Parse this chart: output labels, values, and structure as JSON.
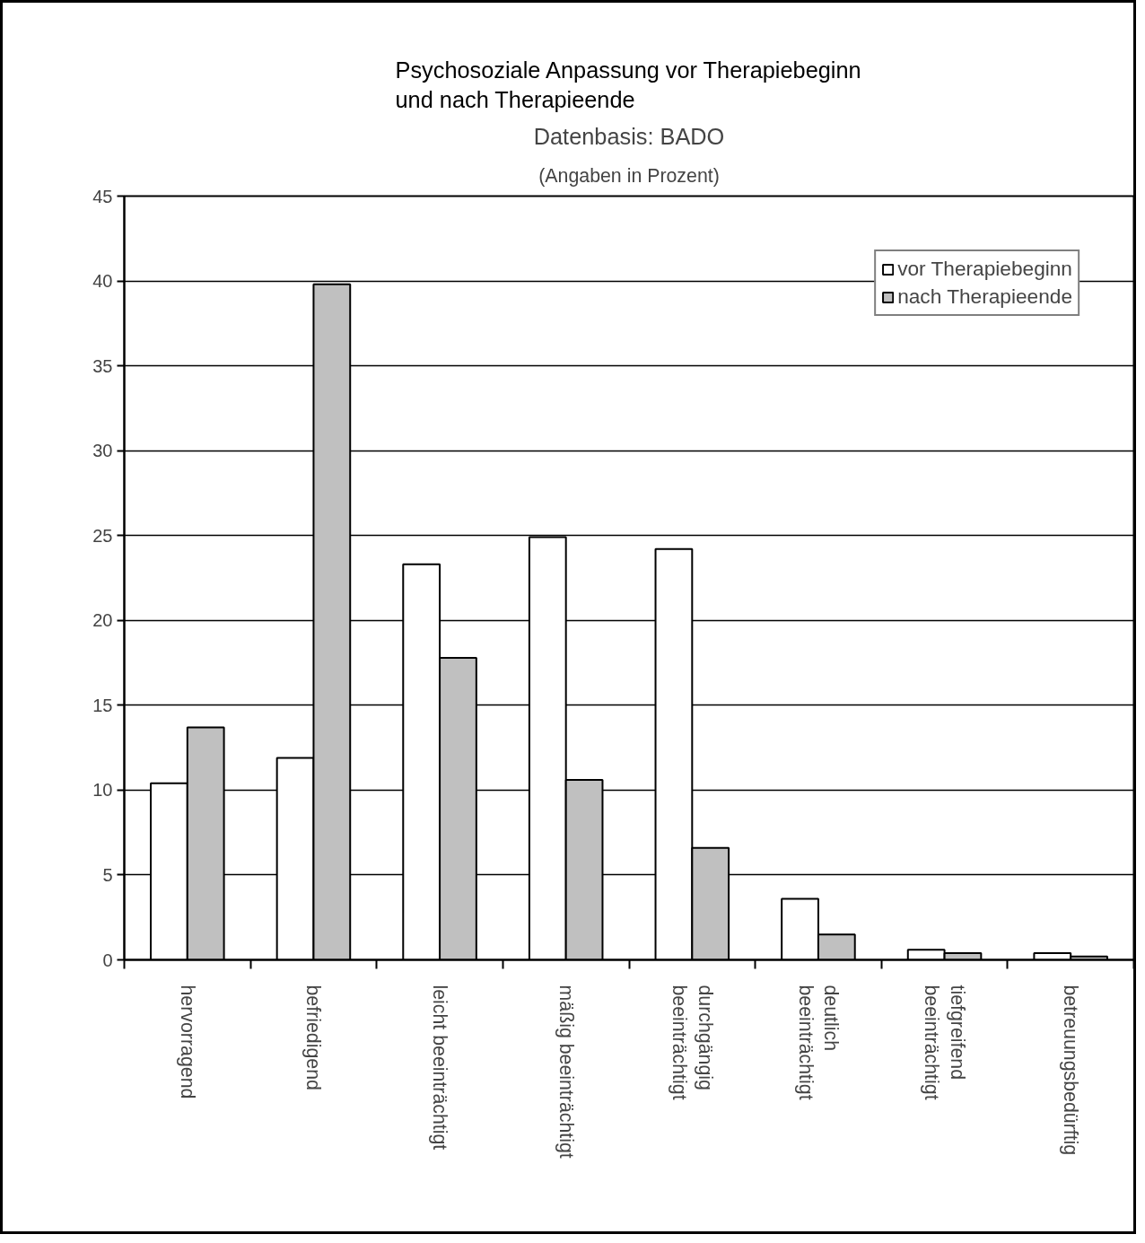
{
  "chart_data": {
    "type": "bar",
    "title": "Psychosoziale Anpassung vor Therapiebeginn und nach Therapieende",
    "subtitle": "Datenbasis: BADO",
    "annotations": [
      "(Angaben in Prozent)"
    ],
    "categories": [
      "hervorragend",
      "befriedigend",
      "leicht beeinträchtigt",
      "mäßig beeinträchtigt",
      "durchgängig beeinträchtigt",
      "deutlich beeinträchtigt",
      "tiefgreifend beeinträchtigt",
      "betreuungsbedürftig"
    ],
    "series": [
      {
        "name": "vor Therapiebeginn",
        "color": "#ffffff",
        "values": [
          10.4,
          11.9,
          23.3,
          24.9,
          24.2,
          3.6,
          0.6,
          0.4
        ]
      },
      {
        "name": "nach Therapieende",
        "color": "#c0c0c0",
        "values": [
          13.7,
          39.8,
          17.8,
          10.6,
          6.6,
          1.5,
          0.4,
          0.2
        ]
      }
    ],
    "ylim": [
      0,
      45
    ],
    "yticks": [
      0,
      5,
      10,
      15,
      20,
      25,
      30,
      35,
      40,
      45
    ],
    "grid": "y",
    "legend": "top right"
  }
}
